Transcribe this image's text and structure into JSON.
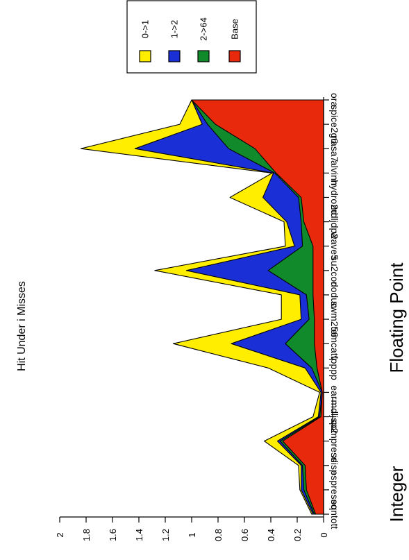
{
  "chart_data": {
    "type": "area",
    "title": "Hit Under i Misses",
    "ylabel": "",
    "ylim": [
      0,
      2
    ],
    "yticks": [
      "0",
      "0.2",
      "0.4",
      "0.6",
      "0.8",
      "1",
      "1.2",
      "1.4",
      "1.6",
      "1.8",
      "2"
    ],
    "categories": [
      "eqntott",
      "espresso",
      "xlisp",
      "compress",
      "mdljsp2",
      "ear",
      "fpppp",
      "tomcatv",
      "swm256",
      "doduc",
      "su2cor",
      "wave5",
      "mdljdp2",
      "hydro2d",
      "alvinn",
      "nasa7",
      "spice2g6",
      "ora"
    ],
    "group_labels": [
      "Integer",
      "Floating Point"
    ],
    "legend_position": "top-right",
    "stacked": true,
    "series": [
      {
        "name": "Base",
        "color": "#e8290b",
        "values": [
          0.06,
          0.13,
          0.14,
          0.31,
          0.02,
          0.01,
          0.05,
          0.07,
          0.07,
          0.08,
          0.08,
          0.08,
          0.15,
          0.17,
          0.36,
          0.52,
          0.82,
          1.0
        ]
      },
      {
        "name": "2->64",
        "color": "#108a2b",
        "values": [
          0.07,
          0.15,
          0.16,
          0.33,
          0.03,
          0.01,
          0.09,
          0.29,
          0.11,
          0.13,
          0.42,
          0.16,
          0.17,
          0.19,
          0.37,
          0.72,
          0.88,
          1.0
        ]
      },
      {
        "name": "1->2",
        "color": "#1a2fd6",
        "values": [
          0.08,
          0.17,
          0.17,
          0.35,
          0.04,
          0.02,
          0.14,
          0.7,
          0.17,
          0.18,
          1.04,
          0.22,
          0.28,
          0.46,
          0.38,
          1.43,
          0.92,
          1.0
        ]
      },
      {
        "name": "0->1",
        "color": "#ffee00",
        "values": [
          0.09,
          0.18,
          0.19,
          0.45,
          0.08,
          0.03,
          0.42,
          1.14,
          0.32,
          0.32,
          1.28,
          0.29,
          0.3,
          0.71,
          0.39,
          1.84,
          1.09,
          1.0
        ]
      }
    ]
  }
}
